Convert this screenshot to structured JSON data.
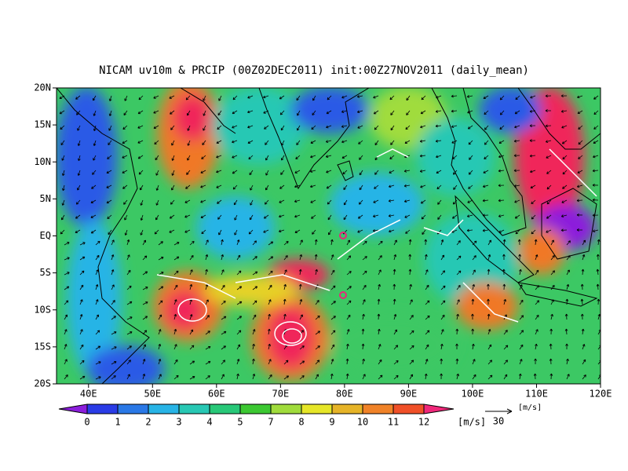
{
  "title": "NICAM uv10m & PRCIP (00Z02DEC2011) init:00Z27NOV2011 (daily_mean)",
  "lat_labels": [
    "20N",
    "15N",
    "10N",
    "5N",
    "EQ",
    "5S",
    "10S",
    "15S",
    "20S"
  ],
  "lon_labels": [
    "40E",
    "50E",
    "60E",
    "70E",
    "80E",
    "90E",
    "100E",
    "110E",
    "120E"
  ],
  "colorbar": {
    "labels": [
      0,
      1,
      2,
      3,
      4,
      5,
      7,
      8,
      9,
      10,
      11,
      12
    ],
    "unit": "[m/s]"
  },
  "reference_vector": {
    "label": "30",
    "unit": "[m/s]"
  }
}
